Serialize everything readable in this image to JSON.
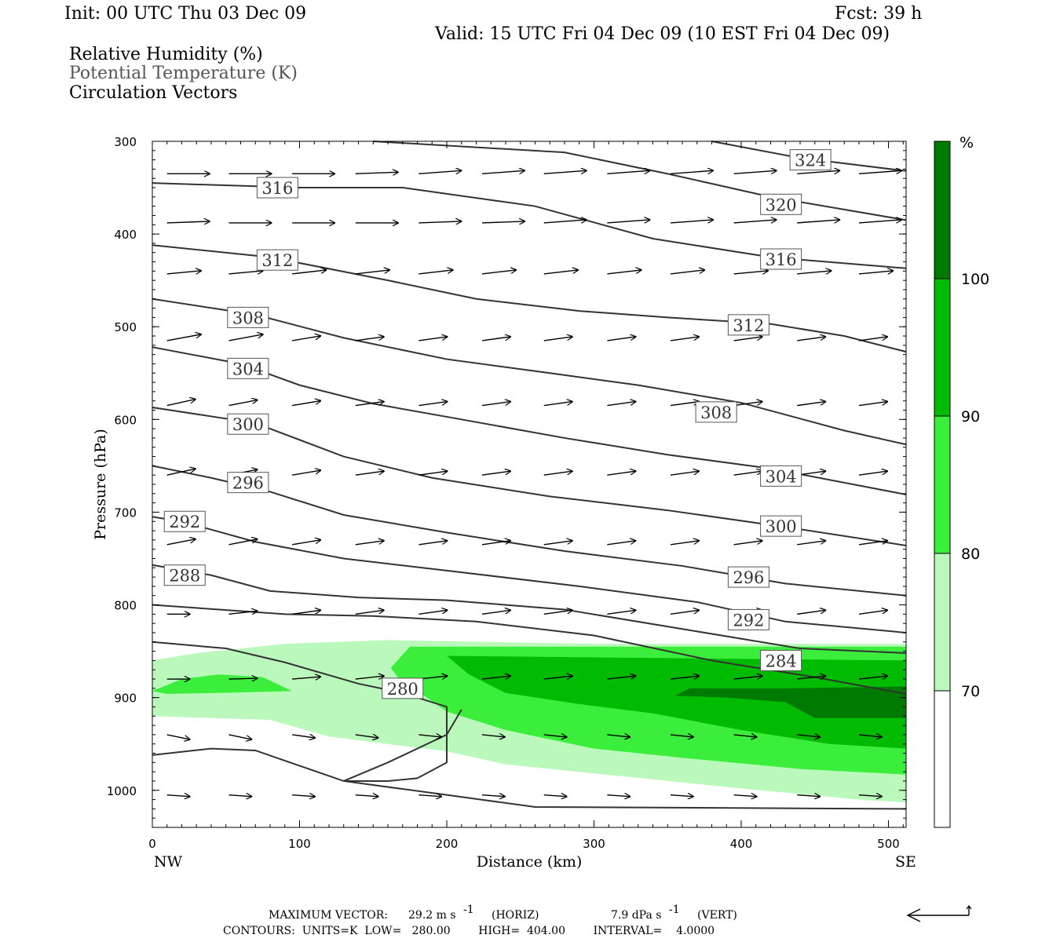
{
  "header": {
    "init": "Init: 00 UTC Thu 03 Dec 09",
    "fcst": "Fcst:   39 h",
    "valid": "Valid: 15 UTC Fri 04 Dec 09 (10 EST Fri 04 Dec 09)",
    "field1": "Relative Humidity (%)",
    "field2": "Potential Temperature (K)",
    "field3": "Circulation Vectors"
  },
  "chart_data": {
    "type": "cross-section",
    "xlabel": "Distance (km)",
    "ylabel": "Pressure (hPa)",
    "xlim": [
      0,
      512
    ],
    "ylim": [
      1040,
      300
    ],
    "x_ticks": [
      "0",
      "100",
      "200",
      "300",
      "400",
      "500"
    ],
    "y_ticks": [
      "300",
      "400",
      "500",
      "600",
      "700",
      "800",
      "900",
      "1000"
    ],
    "x_end_labels": [
      "NW",
      "SE"
    ],
    "colorbar": {
      "unit": "%",
      "ticks": [
        "70",
        "80",
        "90",
        "100"
      ],
      "colors": [
        "#ffffff",
        "#bbf8bb",
        "#3bee3b",
        "#00bb00",
        "#007a00"
      ]
    },
    "rh_fills": [
      {
        "level": "70",
        "color": "#bbf8bb",
        "points": [
          [
            0,
            860
          ],
          [
            30,
            852
          ],
          [
            90,
            842
          ],
          [
            160,
            838
          ],
          [
            300,
            842
          ],
          [
            512,
            842
          ],
          [
            512,
            1013
          ],
          [
            480,
            1010
          ],
          [
            400,
            998
          ],
          [
            320,
            985
          ],
          [
            240,
            972
          ],
          [
            200,
            958
          ],
          [
            160,
            950
          ],
          [
            120,
            942
          ],
          [
            80,
            924
          ],
          [
            0,
            920
          ]
        ]
      },
      {
        "level": "80",
        "color": "#3bee3b",
        "points": [
          [
            162,
            868
          ],
          [
            175,
            845
          ],
          [
            512,
            845
          ],
          [
            512,
            983
          ],
          [
            440,
            977
          ],
          [
            360,
            965
          ],
          [
            300,
            955
          ],
          [
            240,
            935
          ],
          [
            200,
            915
          ],
          [
            182,
            895
          ],
          [
            170,
            885
          ]
        ]
      },
      {
        "level": "80",
        "color": "#3bee3b",
        "points": [
          [
            0,
            893
          ],
          [
            20,
            880
          ],
          [
            45,
            875
          ],
          [
            75,
            878
          ],
          [
            95,
            893
          ],
          [
            45,
            895
          ],
          [
            10,
            896
          ]
        ]
      },
      {
        "level": "90",
        "color": "#00bb00",
        "points": [
          [
            200,
            855
          ],
          [
            512,
            860
          ],
          [
            512,
            955
          ],
          [
            460,
            950
          ],
          [
            400,
            935
          ],
          [
            340,
            917
          ],
          [
            290,
            907
          ],
          [
            240,
            895
          ],
          [
            215,
            875
          ]
        ]
      },
      {
        "level": "100",
        "color": "#007a00",
        "points": [
          [
            355,
            898
          ],
          [
            365,
            890
          ],
          [
            430,
            890
          ],
          [
            512,
            888
          ],
          [
            512,
            922
          ],
          [
            450,
            922
          ],
          [
            430,
            905
          ],
          [
            390,
            900
          ]
        ]
      }
    ],
    "theta_contours": [
      {
        "value": "324",
        "label_at": [
          447,
          320
        ],
        "points": [
          [
            380,
            300
          ],
          [
            440,
            318
          ],
          [
            512,
            332
          ]
        ]
      },
      {
        "value": "320",
        "label_at": [
          427,
          368
        ],
        "points": [
          [
            150,
            300
          ],
          [
            280,
            312
          ],
          [
            350,
            335
          ],
          [
            420,
            360
          ],
          [
            512,
            385
          ]
        ]
      },
      {
        "value": "316",
        "label_at": [
          85,
          350
        ],
        "label2": "316",
        "label2_at": [
          427,
          427
        ],
        "points": [
          [
            0,
            345
          ],
          [
            100,
            350
          ],
          [
            170,
            350
          ],
          [
            260,
            370
          ],
          [
            340,
            405
          ],
          [
            420,
            425
          ],
          [
            512,
            437
          ]
        ]
      },
      {
        "value": "312",
        "label_at": [
          85,
          428
        ],
        "label2": "312",
        "label2_at": [
          405,
          498
        ],
        "points": [
          [
            0,
            412
          ],
          [
            80,
            425
          ],
          [
            160,
            450
          ],
          [
            220,
            470
          ],
          [
            290,
            483
          ],
          [
            350,
            490
          ],
          [
            420,
            497
          ],
          [
            470,
            510
          ],
          [
            512,
            527
          ]
        ]
      },
      {
        "value": "308",
        "label_at": [
          65,
          490
        ],
        "label2": "308",
        "label2_at": [
          383,
          592
        ],
        "points": [
          [
            0,
            470
          ],
          [
            70,
            487
          ],
          [
            130,
            512
          ],
          [
            200,
            535
          ],
          [
            270,
            550
          ],
          [
            330,
            563
          ],
          [
            400,
            582
          ],
          [
            470,
            612
          ],
          [
            512,
            627
          ]
        ]
      },
      {
        "value": "304",
        "label_at": [
          65,
          545
        ],
        "label2": "304",
        "label2_at": [
          427,
          661
        ],
        "points": [
          [
            0,
            522
          ],
          [
            60,
            540
          ],
          [
            100,
            563
          ],
          [
            150,
            583
          ],
          [
            210,
            600
          ],
          [
            280,
            620
          ],
          [
            350,
            638
          ],
          [
            420,
            653
          ],
          [
            512,
            681
          ]
        ]
      },
      {
        "value": "300",
        "label_at": [
          65,
          605
        ],
        "label2": "300",
        "label2_at": [
          427,
          715
        ],
        "points": [
          [
            0,
            587
          ],
          [
            70,
            604
          ],
          [
            130,
            640
          ],
          [
            190,
            663
          ],
          [
            270,
            683
          ],
          [
            350,
            698
          ],
          [
            430,
            716
          ],
          [
            512,
            736
          ]
        ]
      },
      {
        "value": "296",
        "label_at": [
          65,
          668
        ],
        "label2": "296",
        "label2_at": [
          405,
          770
        ],
        "points": [
          [
            0,
            650
          ],
          [
            40,
            663
          ],
          [
            80,
            678
          ],
          [
            130,
            703
          ],
          [
            200,
            722
          ],
          [
            280,
            742
          ],
          [
            360,
            758
          ],
          [
            430,
            777
          ],
          [
            512,
            790
          ]
        ]
      },
      {
        "value": "292",
        "label_at": [
          22,
          710
        ],
        "label2": "292",
        "label2_at": [
          405,
          816
        ],
        "points": [
          [
            0,
            705
          ],
          [
            20,
            710
          ],
          [
            70,
            732
          ],
          [
            130,
            750
          ],
          [
            200,
            763
          ],
          [
            290,
            780
          ],
          [
            370,
            797
          ],
          [
            430,
            818
          ],
          [
            512,
            830
          ]
        ]
      },
      {
        "value": "288",
        "label_at": [
          22,
          768
        ],
        "points": [
          [
            0,
            757
          ],
          [
            40,
            768
          ],
          [
            80,
            785
          ],
          [
            140,
            792
          ],
          [
            200,
            795
          ],
          [
            280,
            805
          ],
          [
            360,
            826
          ],
          [
            440,
            847
          ],
          [
            512,
            852
          ]
        ]
      },
      {
        "value": "284",
        "label_at": [
          427,
          860
        ],
        "points": [
          [
            0,
            800
          ],
          [
            90,
            810
          ],
          [
            150,
            812
          ],
          [
            220,
            818
          ],
          [
            300,
            833
          ],
          [
            380,
            860
          ],
          [
            450,
            878
          ],
          [
            512,
            896
          ]
        ]
      },
      {
        "value": "280",
        "label_at": [
          170,
          890
        ],
        "points": [
          [
            0,
            840
          ],
          [
            50,
            847
          ],
          [
            90,
            862
          ],
          [
            140,
            885
          ],
          [
            170,
            895
          ],
          [
            200,
            910
          ],
          [
            200,
            970
          ],
          [
            180,
            987
          ],
          [
            160,
            990
          ],
          [
            130,
            990
          ],
          [
            160,
            970
          ],
          [
            200,
            940
          ],
          [
            210,
            913
          ]
        ]
      },
      {
        "value": "unlabeled",
        "points": [
          [
            0,
            962
          ],
          [
            40,
            955
          ],
          [
            70,
            957
          ],
          [
            130,
            990
          ],
          [
            200,
            1005
          ],
          [
            260,
            1018
          ],
          [
            512,
            1020
          ]
        ]
      }
    ],
    "vectors": {
      "x": [
        10,
        52,
        95,
        138,
        181,
        224,
        266,
        309,
        352,
        395,
        438,
        480
      ],
      "rows": [
        {
          "p": 335,
          "dx": [
            15,
            15,
            15,
            15,
            15,
            15,
            15,
            15,
            15,
            15,
            15,
            15
          ],
          "dy": [
            0,
            0,
            0,
            -2,
            -4,
            -4,
            -4,
            -4,
            -4,
            -4,
            -4,
            -4
          ]
        },
        {
          "p": 388,
          "dx": [
            15,
            15,
            15,
            15,
            15,
            15,
            15,
            15,
            15,
            15,
            15,
            15
          ],
          "dy": [
            -2,
            0,
            0,
            0,
            -2,
            -2,
            -4,
            -4,
            -4,
            -4,
            -4,
            -4
          ]
        },
        {
          "p": 443,
          "dx": [
            12,
            12,
            12,
            12,
            12,
            12,
            12,
            12,
            12,
            12,
            12,
            12
          ],
          "dy": [
            -4,
            -4,
            -5,
            -5,
            -5,
            -5,
            -5,
            -5,
            -5,
            -4,
            -4,
            -4
          ]
        },
        {
          "p": 515,
          "dx": [
            12,
            12,
            10,
            10,
            10,
            10,
            10,
            10,
            10,
            10,
            10,
            10
          ],
          "dy": [
            -8,
            -8,
            -6,
            -5,
            -5,
            -5,
            -5,
            -5,
            -5,
            -5,
            -5,
            -5
          ]
        },
        {
          "p": 585,
          "dx": [
            10,
            10,
            10,
            10,
            10,
            10,
            10,
            10,
            10,
            10,
            10,
            10
          ],
          "dy": [
            -8,
            -7,
            -6,
            -5,
            -5,
            -5,
            -5,
            -5,
            -5,
            -5,
            -5,
            -5
          ]
        },
        {
          "p": 660,
          "dx": [
            10,
            10,
            10,
            10,
            10,
            10,
            10,
            10,
            10,
            10,
            10,
            10
          ],
          "dy": [
            -8,
            -7,
            -6,
            -5,
            -5,
            -5,
            -5,
            -5,
            -5,
            -5,
            -5,
            -5
          ]
        },
        {
          "p": 735,
          "dx": [
            10,
            10,
            10,
            10,
            10,
            10,
            10,
            10,
            10,
            10,
            10,
            10
          ],
          "dy": [
            -7,
            -7,
            -6,
            -5,
            -5,
            -5,
            -5,
            -5,
            -5,
            -5,
            -5,
            -5
          ]
        },
        {
          "p": 810,
          "dx": [
            8,
            10,
            10,
            10,
            10,
            10,
            10,
            10,
            10,
            10,
            10,
            10
          ],
          "dy": [
            0,
            -4,
            -5,
            -5,
            -5,
            -5,
            -5,
            -5,
            -5,
            -5,
            -5,
            -5
          ]
        },
        {
          "p": 880,
          "dx": [
            8,
            10,
            10,
            10,
            10,
            10,
            10,
            10,
            10,
            10,
            10,
            10
          ],
          "dy": [
            0,
            -1,
            -3,
            -4,
            -4,
            -4,
            -4,
            -4,
            -4,
            -4,
            -4,
            -4
          ]
        },
        {
          "p": 940,
          "dx": [
            8,
            8,
            8,
            8,
            8,
            8,
            8,
            8,
            8,
            8,
            8,
            8
          ],
          "dy": [
            6,
            6,
            4,
            4,
            3,
            3,
            3,
            3,
            3,
            3,
            3,
            3
          ]
        },
        {
          "p": 1005,
          "dx": [
            8,
            8,
            8,
            8,
            8,
            8,
            8,
            8,
            8,
            8,
            8,
            8
          ],
          "dy": [
            2,
            2,
            2,
            2,
            2,
            2,
            2,
            2,
            2,
            2,
            2,
            2
          ]
        }
      ]
    }
  },
  "footer": {
    "maxvec_label": "MAXIMUM VECTOR:",
    "maxvec_horiz": "29.2 m s",
    "maxvec_horiz_unit": "(HORIZ)",
    "maxvec_vert": "7.9 dPa s",
    "maxvec_vert_unit": "(VERT)",
    "superscript": "-1",
    "contours": "CONTOURS:  UNITS=K  LOW=   280.00        HIGH=  404.00        INTERVAL=    4.0000"
  }
}
